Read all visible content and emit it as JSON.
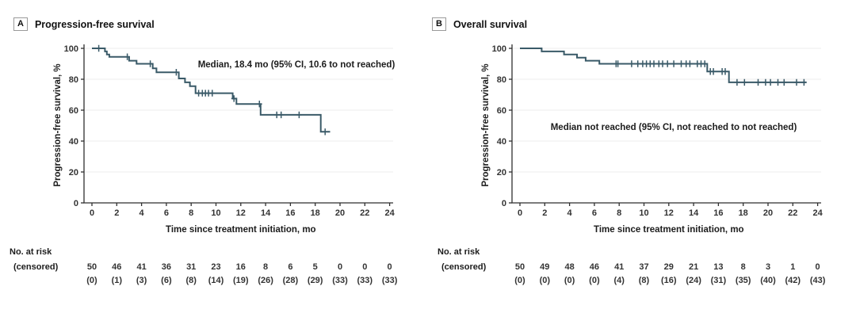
{
  "figure": {
    "xlabel": "Time since treatment initiation, mo",
    "ylabel": "Progression-free survival, %",
    "risk_header": "No. at risk",
    "risk_subheader": "(censored)",
    "curve_color": "#3a5a68",
    "grid_color": "#ececec",
    "axis_color": "#2f2f2f"
  },
  "chart_data": [
    {
      "type": "line",
      "subtype": "kaplan-meier-step",
      "panel_label": "A",
      "title": "Progression-free survival",
      "annotation": "Median, 18.4 mo (95% CI, 10.6 to not reached)",
      "xlabel": "Time since treatment initiation, mo",
      "ylabel": "Progression-free survival, %",
      "xlim": [
        0,
        24
      ],
      "ylim": [
        0,
        100
      ],
      "x_ticks": [
        0,
        2,
        4,
        6,
        8,
        10,
        12,
        14,
        16,
        18,
        20,
        22,
        24
      ],
      "y_ticks": [
        0,
        20,
        40,
        60,
        80,
        100
      ],
      "grid": "horizontal-light",
      "legend": "none",
      "color": "#3a5a68",
      "curve": {
        "start_pct": 100,
        "drops": [
          [
            1.05,
            98
          ],
          [
            1.2,
            96
          ],
          [
            1.4,
            94.5
          ],
          [
            3.0,
            92
          ],
          [
            3.6,
            90
          ],
          [
            4.9,
            87
          ],
          [
            5.2,
            84.5
          ],
          [
            7.0,
            80.5
          ],
          [
            7.5,
            78
          ],
          [
            7.9,
            75.5
          ],
          [
            8.35,
            71
          ],
          [
            11.35,
            67.5
          ],
          [
            11.65,
            64
          ],
          [
            13.6,
            57
          ],
          [
            18.45,
            46
          ]
        ],
        "end_t": 19.2
      },
      "censor_marks": [
        [
          0.55,
          100
        ],
        [
          2.85,
          94.5
        ],
        [
          4.7,
          90
        ],
        [
          6.8,
          84.5
        ],
        [
          8.6,
          71
        ],
        [
          8.9,
          71
        ],
        [
          9.15,
          71
        ],
        [
          9.4,
          71
        ],
        [
          9.7,
          71
        ],
        [
          11.45,
          67.5
        ],
        [
          13.5,
          64
        ],
        [
          14.9,
          57
        ],
        [
          15.25,
          57
        ],
        [
          16.7,
          57
        ],
        [
          18.8,
          46
        ]
      ],
      "annotation_pos": {
        "x": 374,
        "y": 45
      },
      "risk_table": {
        "header": "No. at risk",
        "subheader": "(censored)",
        "times": [
          0,
          2,
          4,
          6,
          8,
          10,
          12,
          14,
          16,
          18,
          20,
          22,
          24
        ],
        "at_risk": [
          50,
          46,
          41,
          36,
          31,
          23,
          16,
          8,
          6,
          5,
          0,
          0,
          0
        ],
        "censored": [
          "(0)",
          "(1)",
          "(3)",
          "(6)",
          "(8)",
          "(14)",
          "(19)",
          "(26)",
          "(28)",
          "(29)",
          "(33)",
          "(33)",
          "(33)"
        ]
      }
    },
    {
      "type": "line",
      "subtype": "kaplan-meier-step",
      "panel_label": "B",
      "title": "Overall survival",
      "annotation": "Median not reached (95% CI, not reached to not reached)",
      "xlabel": "Time since treatment initiation, mo",
      "ylabel": "Progression-free survival, %",
      "xlim": [
        0,
        24
      ],
      "ylim": [
        0,
        100
      ],
      "x_ticks": [
        0,
        2,
        4,
        6,
        8,
        10,
        12,
        14,
        16,
        18,
        20,
        22,
        24
      ],
      "y_ticks": [
        0,
        20,
        40,
        60,
        80,
        100
      ],
      "grid": "horizontal-light",
      "legend": "none",
      "color": "#3a5a68",
      "curve": {
        "start_pct": 100,
        "drops": [
          [
            1.75,
            98
          ],
          [
            3.55,
            96
          ],
          [
            4.6,
            94
          ],
          [
            5.3,
            92
          ],
          [
            6.4,
            90
          ],
          [
            15.1,
            85
          ],
          [
            16.85,
            78
          ]
        ],
        "end_t": 23.1
      },
      "censor_marks": [
        [
          7.75,
          90
        ],
        [
          7.9,
          90
        ],
        [
          9.0,
          90
        ],
        [
          9.5,
          90
        ],
        [
          9.9,
          90
        ],
        [
          10.2,
          90
        ],
        [
          10.5,
          90
        ],
        [
          10.8,
          90
        ],
        [
          11.2,
          90
        ],
        [
          11.5,
          90
        ],
        [
          11.9,
          90
        ],
        [
          12.4,
          90
        ],
        [
          13.0,
          90
        ],
        [
          13.4,
          90
        ],
        [
          13.7,
          90
        ],
        [
          14.3,
          90
        ],
        [
          14.6,
          90
        ],
        [
          14.9,
          90
        ],
        [
          15.35,
          85
        ],
        [
          15.6,
          85
        ],
        [
          16.3,
          85
        ],
        [
          16.55,
          85
        ],
        [
          17.5,
          78
        ],
        [
          18.1,
          78
        ],
        [
          19.2,
          78
        ],
        [
          19.8,
          78
        ],
        [
          20.2,
          78
        ],
        [
          20.8,
          78
        ],
        [
          21.3,
          78
        ],
        [
          22.3,
          78
        ],
        [
          22.9,
          78
        ]
      ],
      "annotation_pos": {
        "x": 310,
        "y": 124
      },
      "risk_table": {
        "header": "No. at risk",
        "subheader": "(censored)",
        "times": [
          0,
          2,
          4,
          6,
          8,
          10,
          12,
          14,
          16,
          18,
          20,
          22,
          24
        ],
        "at_risk": [
          50,
          49,
          48,
          46,
          41,
          37,
          29,
          21,
          13,
          8,
          3,
          1,
          0
        ],
        "censored": [
          "(0)",
          "(0)",
          "(0)",
          "(0)",
          "(4)",
          "(8)",
          "(16)",
          "(24)",
          "(31)",
          "(35)",
          "(40)",
          "(42)",
          "(43)"
        ]
      }
    }
  ]
}
